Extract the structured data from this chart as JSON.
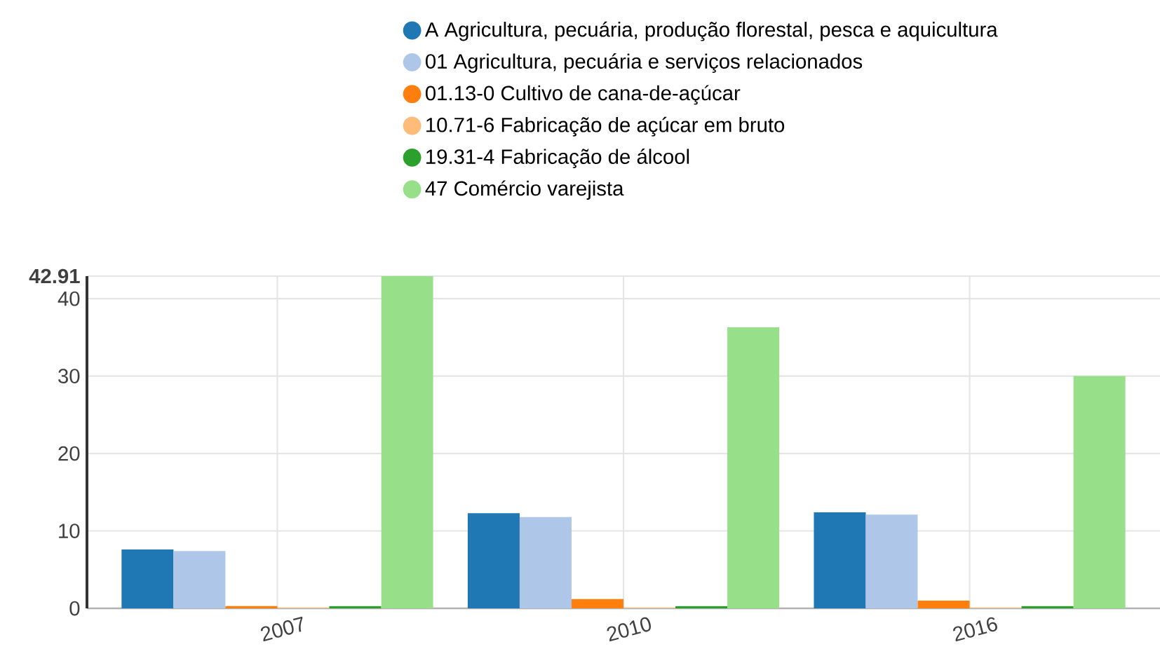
{
  "chart_data": {
    "type": "bar",
    "categories": [
      "2007",
      "2010",
      "2016"
    ],
    "series": [
      {
        "name": "A Agricultura, pecuária, produção florestal, pesca e aquicultura",
        "color": "#1f77b4",
        "values": [
          7.6,
          12.3,
          12.4
        ]
      },
      {
        "name": "01 Agricultura, pecuária e serviços relacionados",
        "color": "#aec7e8",
        "values": [
          7.4,
          11.8,
          12.1
        ]
      },
      {
        "name": "01.13-0 Cultivo de cana-de-açúcar",
        "color": "#ff7f0e",
        "values": [
          0.3,
          1.2,
          1.0
        ]
      },
      {
        "name": "10.71-6 Fabricação de açúcar em bruto",
        "color": "#ffbb78",
        "values": [
          0.1,
          0.1,
          0.1
        ]
      },
      {
        "name": "19.31-4 Fabricação de álcool",
        "color": "#2ca02c",
        "values": [
          0.3,
          0.3,
          0.3
        ]
      },
      {
        "name": "47 Comércio varejista",
        "color": "#98df8a",
        "values": [
          42.91,
          36.3,
          30.0
        ]
      }
    ],
    "ylim": [
      0,
      42.91
    ],
    "yticks": [
      0,
      10,
      20,
      30,
      40,
      42.91
    ],
    "grid": true,
    "legend": "top right"
  }
}
